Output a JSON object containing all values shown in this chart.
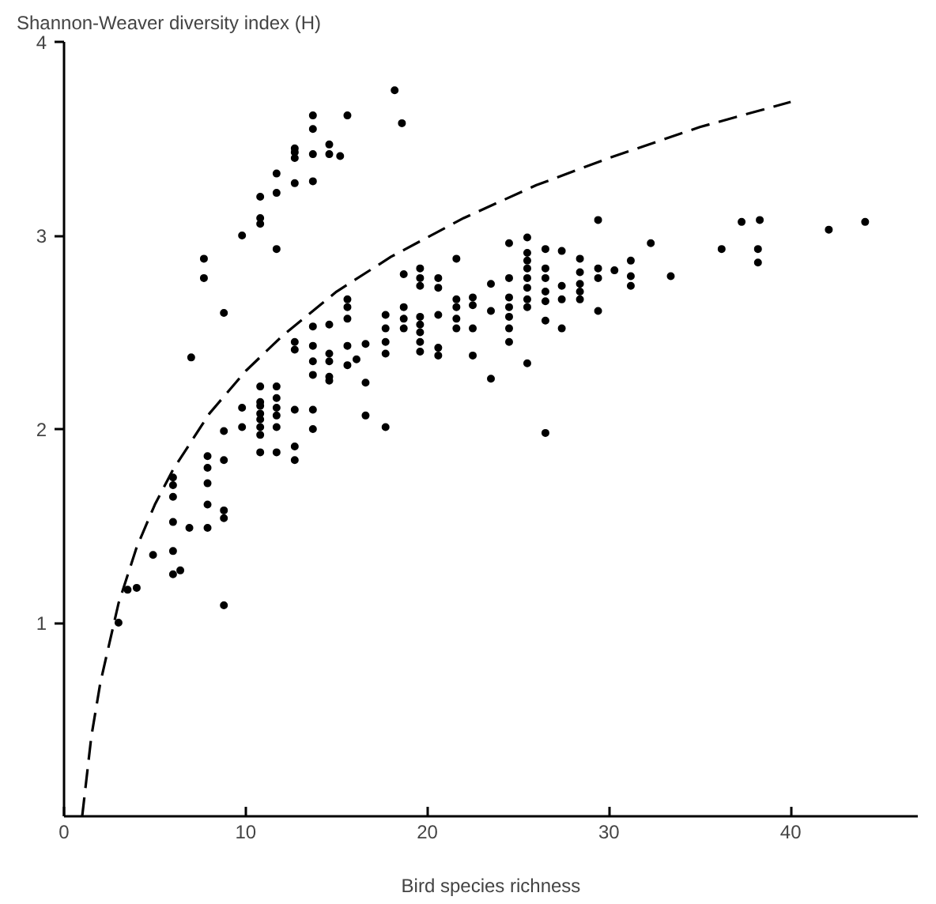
{
  "chart_data": {
    "type": "scatter",
    "ylabel": "Shannon-Weaver diversity index (H)",
    "xlabel": "Bird species richness",
    "xlim": [
      0,
      47
    ],
    "ylim": [
      0,
      4
    ],
    "xticks": [
      0,
      10,
      20,
      30,
      40
    ],
    "yticks": [
      1,
      2,
      3,
      4
    ],
    "grid": false,
    "series": [
      {
        "marker": "circle",
        "color": "#000000",
        "x": [
          7,
          7.7,
          7.7,
          8.8,
          9.8,
          10.8,
          10.8,
          10.8,
          11.7,
          11.7,
          11.7,
          12.7,
          12.7,
          12.7,
          12.7,
          13.7,
          13.7,
          13.7,
          13.7,
          14.6,
          14.6,
          15.2,
          15.6,
          18.2,
          18.6,
          3,
          3.5,
          4,
          4.9,
          6,
          6,
          6,
          6,
          6,
          6,
          6.4,
          6.9,
          7.9,
          7.9,
          7.9,
          7.9,
          7.9,
          8.8,
          8.8,
          8.8,
          8.8,
          8.8,
          9.8,
          9.8,
          10.8,
          10.8,
          10.8,
          10.8,
          10.8,
          10.8,
          10.8,
          10.8,
          11.7,
          11.7,
          11.7,
          11.7,
          11.7,
          11.7,
          12.7,
          12.7,
          12.7,
          12.7,
          12.7,
          13.7,
          13.7,
          13.7,
          13.7,
          13.7,
          13.7,
          14.6,
          14.6,
          14.6,
          14.6,
          14.6,
          15.6,
          15.6,
          15.6,
          15.6,
          15.6,
          16.1,
          16.6,
          16.6,
          16.6,
          17.7,
          17.7,
          17.7,
          17.7,
          17.7,
          18.7,
          18.7,
          18.7,
          18.7,
          19.6,
          19.6,
          19.6,
          19.6,
          19.6,
          19.6,
          19.6,
          19.6,
          20.6,
          20.6,
          20.6,
          20.6,
          20.6,
          21.6,
          21.6,
          21.6,
          21.6,
          21.6,
          22.5,
          22.5,
          22.5,
          22.5,
          23.5,
          23.5,
          23.5,
          24.5,
          24.5,
          24.5,
          24.5,
          24.5,
          24.5,
          24.5,
          25.5,
          25.5,
          25.5,
          25.5,
          25.5,
          25.5,
          25.5,
          25.5,
          25.5,
          26.5,
          26.5,
          26.5,
          26.5,
          26.5,
          26.5,
          26.5,
          27.4,
          27.4,
          27.4,
          27.4,
          28.4,
          28.4,
          28.4,
          28.4,
          28.4,
          29.4,
          29.4,
          29.4,
          29.4,
          30.3,
          31.2,
          31.2,
          31.2,
          32.3,
          33.4,
          36.2,
          37.3,
          38.3,
          38.2,
          38.2,
          42.1,
          44.1
        ],
        "values": [
          2.37,
          2.88,
          2.78,
          2.6,
          3.0,
          3.09,
          3.06,
          3.2,
          3.32,
          3.22,
          2.93,
          3.45,
          3.43,
          3.4,
          3.27,
          3.62,
          3.55,
          3.42,
          3.28,
          3.47,
          3.42,
          3.41,
          3.62,
          3.75,
          3.58,
          1.0,
          1.17,
          1.18,
          1.35,
          1.75,
          1.71,
          1.65,
          1.52,
          1.37,
          1.25,
          1.27,
          1.49,
          1.86,
          1.8,
          1.72,
          1.61,
          1.49,
          1.99,
          1.84,
          1.58,
          1.54,
          1.09,
          2.11,
          2.01,
          2.22,
          2.14,
          2.12,
          2.08,
          2.05,
          2.01,
          1.97,
          1.88,
          2.22,
          2.16,
          2.11,
          2.07,
          2.01,
          1.88,
          2.1,
          1.91,
          1.84,
          2.45,
          2.41,
          2.1,
          2.0,
          2.53,
          2.43,
          2.35,
          2.28,
          2.54,
          2.39,
          2.35,
          2.27,
          2.25,
          2.67,
          2.63,
          2.57,
          2.43,
          2.33,
          2.36,
          2.44,
          2.24,
          2.07,
          2.59,
          2.52,
          2.45,
          2.39,
          2.01,
          2.8,
          2.63,
          2.57,
          2.52,
          2.83,
          2.78,
          2.74,
          2.58,
          2.54,
          2.5,
          2.45,
          2.4,
          2.78,
          2.73,
          2.59,
          2.42,
          2.38,
          2.88,
          2.67,
          2.63,
          2.57,
          2.52,
          2.68,
          2.64,
          2.52,
          2.38,
          2.75,
          2.61,
          2.26,
          2.96,
          2.78,
          2.68,
          2.63,
          2.58,
          2.52,
          2.45,
          2.99,
          2.91,
          2.87,
          2.83,
          2.78,
          2.73,
          2.67,
          2.63,
          2.34,
          2.93,
          2.83,
          2.78,
          2.71,
          2.66,
          2.56,
          1.98,
          2.92,
          2.74,
          2.67,
          2.52,
          2.88,
          2.81,
          2.75,
          2.71,
          2.67,
          3.08,
          2.83,
          2.78,
          2.61,
          2.82,
          2.87,
          2.79,
          2.74,
          2.96,
          2.79,
          2.93,
          3.07,
          3.08,
          2.93,
          2.86,
          3.03,
          3.07
        ]
      },
      {
        "type": "line",
        "line_style": "dashed",
        "color": "#000000",
        "x": [
          1,
          1.5,
          2,
          3,
          4,
          5,
          6,
          8,
          10,
          12,
          15,
          18,
          22,
          26,
          30,
          35,
          40
        ],
        "values": [
          0,
          0.41,
          0.69,
          1.1,
          1.39,
          1.61,
          1.79,
          2.08,
          2.3,
          2.48,
          2.71,
          2.89,
          3.09,
          3.26,
          3.4,
          3.56,
          3.69
        ]
      }
    ]
  }
}
